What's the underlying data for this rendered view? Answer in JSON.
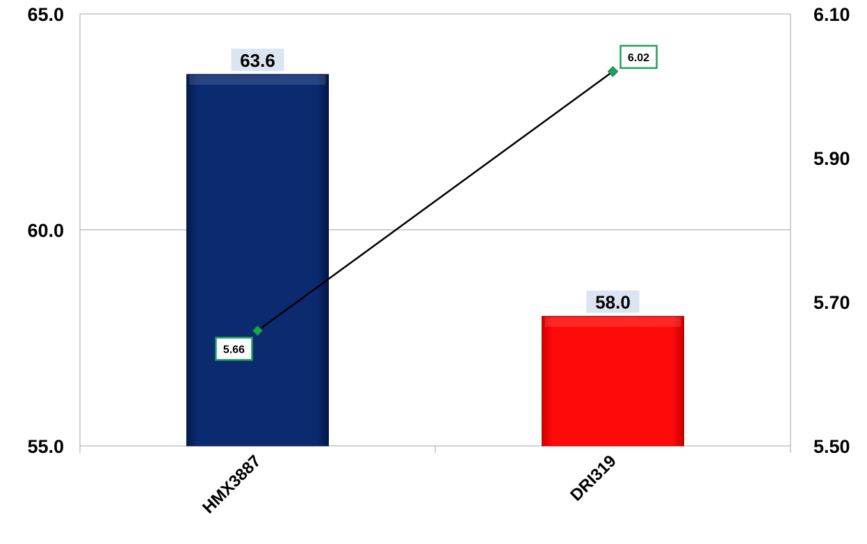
{
  "chart_data": {
    "type": "bar",
    "title": "",
    "categories": [
      "HMX3887",
      "DRI319"
    ],
    "series": [
      {
        "type": "bar",
        "axis": "left",
        "values": [
          63.6,
          58.0
        ],
        "value_labels": [
          "63.6",
          "58.0"
        ],
        "colors": [
          "#0a2a6e",
          "#ff0a0a"
        ]
      },
      {
        "type": "line",
        "axis": "right",
        "values": [
          5.66,
          6.02
        ],
        "value_labels": [
          "5.66",
          "6.02"
        ],
        "color": "#000000",
        "marker_color": "#1fa35a"
      }
    ],
    "y_left": {
      "range": [
        55.0,
        65.0
      ],
      "ticks": [
        55.0,
        60.0,
        65.0
      ],
      "tick_labels": [
        "55.0",
        "60.0",
        "65.0"
      ]
    },
    "y_right": {
      "range": [
        5.5,
        6.1
      ],
      "ticks": [
        5.5,
        5.7,
        5.9,
        6.1
      ],
      "tick_labels": [
        "5.50",
        "5.70",
        "5.90",
        "6.10"
      ]
    },
    "grid": true,
    "legend": "none"
  }
}
